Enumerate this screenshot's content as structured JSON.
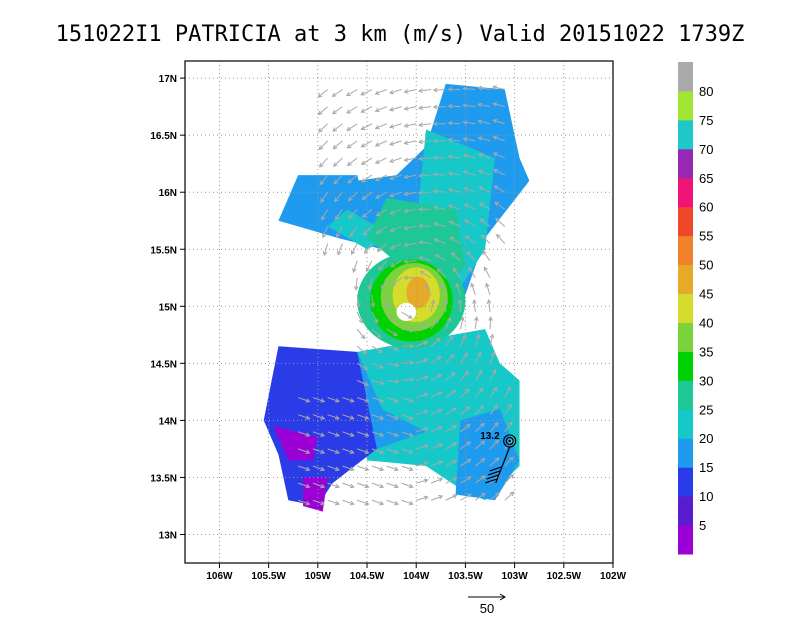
{
  "chart_data": {
    "type": "heatmap",
    "title": "151022I1 PATRICIA at 3 km (m/s) Valid 20151022  1739Z",
    "x_ticks": [
      "106W",
      "105.5W",
      "105W",
      "104.5W",
      "104W",
      "103.5W",
      "103W",
      "102.5W",
      "102W"
    ],
    "x_values": [
      -106,
      -105.5,
      -105,
      -104.5,
      -104,
      -103.5,
      -103,
      -102.5,
      -102
    ],
    "y_ticks": [
      "17N",
      "16.5N",
      "16N",
      "15.5N",
      "15N",
      "14.5N",
      "14N",
      "13.5N",
      "13N"
    ],
    "y_values": [
      17,
      16.5,
      16,
      15.5,
      15,
      14.5,
      14,
      13.5,
      13
    ],
    "xlim": [
      -106.35,
      -102
    ],
    "ylim": [
      12.75,
      17.15
    ],
    "grid": true,
    "colorbar": {
      "labels": [
        "5",
        "10",
        "15",
        "20",
        "25",
        "30",
        "35",
        "40",
        "45",
        "50",
        "55",
        "60",
        "65",
        "70",
        "75",
        "80"
      ],
      "colors": [
        "#9b00d4",
        "#5a1ccf",
        "#2a3ce8",
        "#1e9bef",
        "#16c8c8",
        "#1ec896",
        "#00d200",
        "#7ad23c",
        "#d6dc2c",
        "#e6aa28",
        "#f0822c",
        "#f0462a",
        "#f01478",
        "#9628b4",
        "#1ec8c8",
        "#a0e632",
        "#aaaaaa"
      ]
    },
    "storm_center": {
      "lon": -103.05,
      "lat": 13.82,
      "label": "13.2"
    },
    "reference_vector": {
      "label": "50"
    }
  }
}
